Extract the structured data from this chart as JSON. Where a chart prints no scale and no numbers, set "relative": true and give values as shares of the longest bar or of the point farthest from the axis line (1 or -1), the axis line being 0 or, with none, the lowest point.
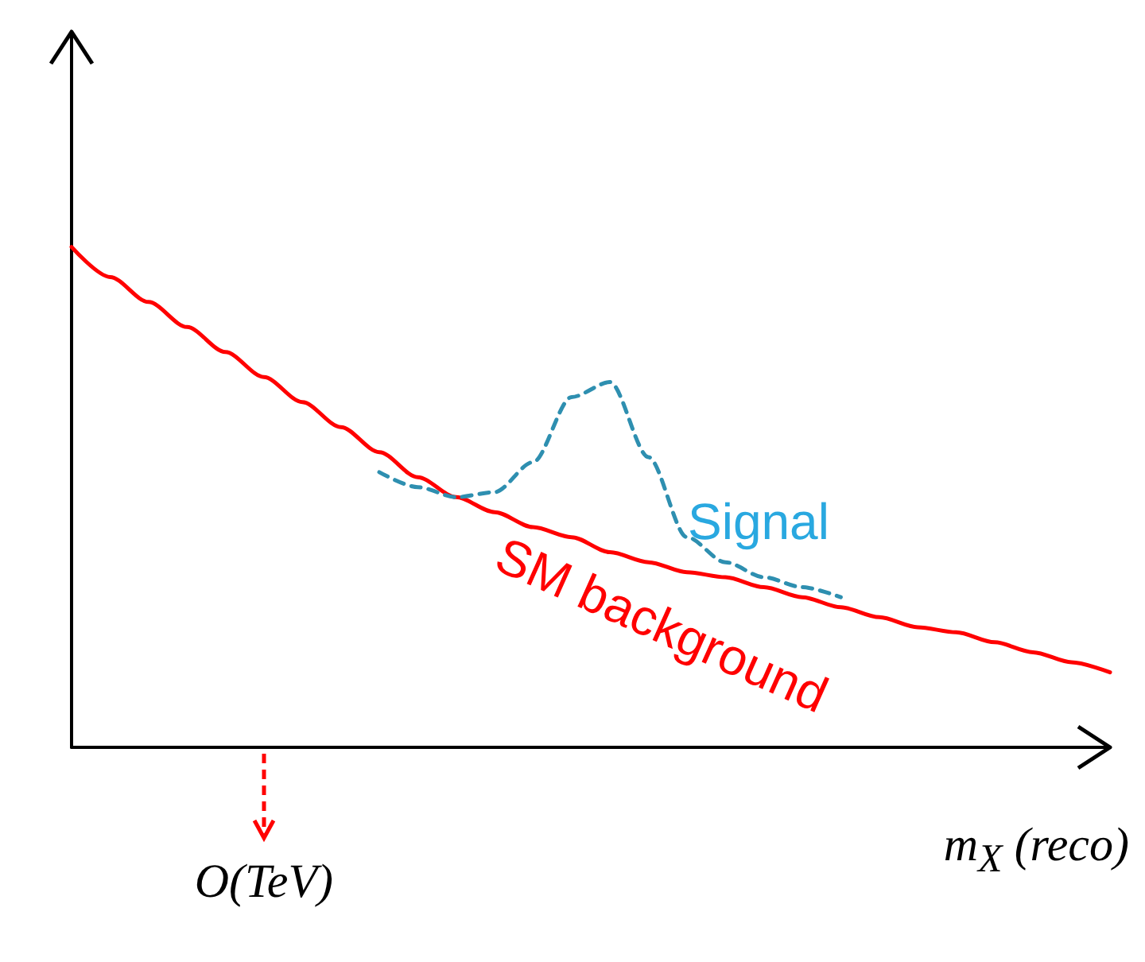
{
  "chart_data": {
    "type": "line",
    "relative": true,
    "xlabel": "m$_{X}$ (reco)",
    "annotations": [
      "O(TeV)"
    ],
    "categories": [
      null,
      null,
      null,
      null,
      null,
      null,
      null,
      null,
      null,
      null,
      null,
      null,
      null,
      null,
      null,
      null,
      null,
      null,
      null,
      null,
      null,
      null,
      null,
      null,
      null,
      null,
      null,
      null
    ],
    "series": [
      {
        "name": "SM background",
        "color": "#ff0000",
        "line_style": "solid",
        "values": [
          1,
          0.94,
          0.89,
          0.84,
          0.79,
          0.74,
          0.69,
          0.64,
          0.59,
          0.54,
          0.5,
          0.47,
          0.44,
          0.42,
          0.39,
          0.37,
          0.35,
          0.34,
          0.32,
          0.3,
          0.28,
          0.26,
          0.24,
          0.23,
          0.21,
          0.19,
          0.17,
          0.15
        ]
      },
      {
        "name": "Signal",
        "color": "#2e8fb0",
        "line_style": "dashed",
        "values": [
          null,
          null,
          null,
          null,
          null,
          null,
          null,
          null,
          0.55,
          0.52,
          0.5,
          0.51,
          0.57,
          0.7,
          0.73,
          0.58,
          0.42,
          0.37,
          0.34,
          0.32,
          0.3,
          null,
          null,
          null,
          null,
          null,
          null,
          null
        ]
      }
    ],
    "legend": false,
    "grid": false,
    "marker": "none"
  }
}
